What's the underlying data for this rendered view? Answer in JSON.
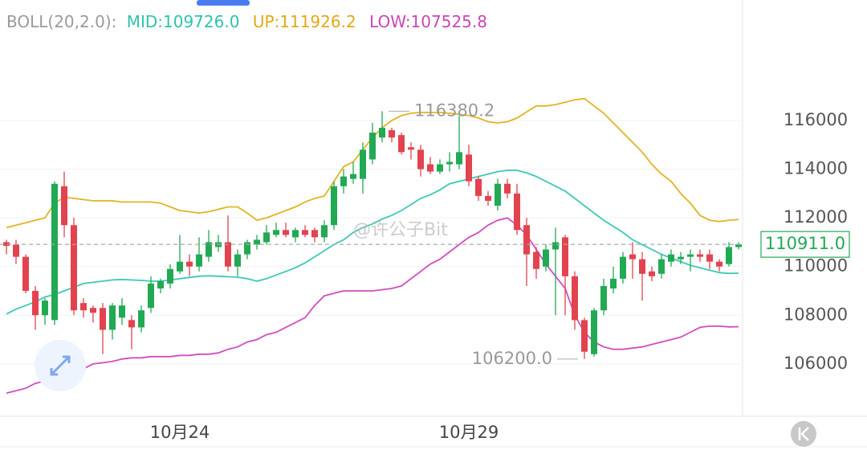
{
  "chart_data": {
    "type": "candlestick",
    "header": {
      "indicator": "BOLL(20,2.0):",
      "mid": "MID:109726.0",
      "up": "UP:111926.2",
      "low": "LOW:107525.8"
    },
    "watermark": "@许公子Bit",
    "categories": [
      null,
      null,
      null,
      null,
      null,
      null,
      null,
      null,
      null,
      null,
      null,
      null,
      null,
      null,
      null,
      null,
      null,
      null,
      "10月24",
      null,
      null,
      null,
      null,
      null,
      null,
      null,
      null,
      null,
      null,
      null,
      null,
      null,
      null,
      null,
      null,
      null,
      null,
      null,
      null,
      null,
      null,
      null,
      null,
      null,
      null,
      null,
      null,
      null,
      "10月29",
      null,
      null,
      null,
      null,
      null,
      null,
      null,
      null,
      null,
      null,
      null,
      null,
      null,
      null,
      null,
      null,
      null,
      null,
      null,
      null,
      null,
      null,
      null,
      null,
      null,
      null,
      null,
      null
    ],
    "open": [
      111000,
      110900,
      110400,
      109000,
      108000,
      107800,
      113300,
      111700,
      108500,
      108300,
      108300,
      107400,
      107900,
      107800,
      107500,
      108300,
      109100,
      109300,
      109800,
      110200,
      110000,
      110400,
      110800,
      111000,
      110000,
      110500,
      110900,
      111000,
      111300,
      111500,
      111200,
      111500,
      111500,
      111200,
      111700,
      113300,
      113600,
      113600,
      114400,
      115300,
      115600,
      115400,
      114900,
      114800,
      114200,
      113900,
      114200,
      114200,
      114600,
      113600,
      112900,
      112500,
      113400,
      113000,
      111700,
      110600,
      110000,
      110700,
      111200,
      109600,
      107800,
      106400,
      108200,
      109100,
      109500,
      110500,
      110300,
      109800,
      109700,
      110200,
      110300,
      110400,
      110500,
      110500,
      110200,
      110100,
      110800
    ],
    "high": [
      111100,
      111100,
      110500,
      109200,
      108700,
      113500,
      113900,
      112000,
      108700,
      108400,
      108500,
      108500,
      108700,
      108000,
      108400,
      109600,
      109500,
      110100,
      111300,
      110500,
      111200,
      111500,
      111300,
      112100,
      110700,
      111100,
      111300,
      111700,
      111800,
      111800,
      111600,
      111700,
      111600,
      111900,
      113500,
      114000,
      114300,
      115100,
      115900,
      116380.2,
      115700,
      115500,
      115100,
      115000,
      114500,
      114400,
      114700,
      116200,
      115000,
      113700,
      113100,
      113600,
      113600,
      113400,
      112000,
      110800,
      110900,
      111600,
      111300,
      109800,
      107900,
      108300,
      109500,
      110000,
      110600,
      111000,
      110600,
      110000,
      110500,
      110700,
      110600,
      110700,
      110700,
      110700,
      110300,
      111000,
      111000
    ],
    "low": [
      110500,
      110100,
      108900,
      107400,
      107600,
      107600,
      111200,
      108000,
      107900,
      107700,
      106400,
      107000,
      107600,
      106600,
      107300,
      108100,
      108900,
      109100,
      109700,
      109600,
      109800,
      110200,
      110600,
      109800,
      109600,
      110300,
      110700,
      110900,
      111200,
      111200,
      111000,
      111200,
      111000,
      111000,
      111500,
      113000,
      113400,
      113000,
      114200,
      115100,
      115100,
      114600,
      114400,
      113700,
      113800,
      113800,
      113900,
      114000,
      113300,
      112700,
      112500,
      112300,
      112800,
      111300,
      109200,
      109500,
      109800,
      108000,
      108000,
      107400,
      106200,
      106300,
      108000,
      108900,
      109300,
      109500,
      108600,
      109400,
      109500,
      110000,
      110100,
      109800,
      110200,
      109900,
      109800,
      110000,
      110700
    ],
    "close": [
      110850,
      110400,
      109000,
      108000,
      108600,
      113400,
      111700,
      108200,
      108200,
      108100,
      107400,
      108400,
      108400,
      107500,
      108200,
      109300,
      109400,
      109900,
      110200,
      110000,
      110500,
      111000,
      111000,
      110000,
      110500,
      111000,
      111100,
      111400,
      111500,
      111300,
      111500,
      111300,
      111200,
      111700,
      113300,
      113700,
      113800,
      114800,
      115500,
      115700,
      115300,
      114700,
      114800,
      114000,
      113900,
      114200,
      114300,
      114700,
      113500,
      112900,
      112700,
      113400,
      113000,
      111500,
      110500,
      109900,
      110700,
      111000,
      109600,
      107800,
      106500,
      108200,
      109200,
      109500,
      110400,
      110300,
      109700,
      109600,
      110300,
      110500,
      110400,
      110500,
      110400,
      110200,
      110000,
      110800,
      110911
    ],
    "up_color": "#22a954",
    "down_color": "#e2434f",
    "bands": [
      {
        "color": "#3cc9b7",
        "values": [
          108050,
          108250,
          108400,
          108550,
          108750,
          108850,
          109000,
          109150,
          109300,
          109350,
          109400,
          109450,
          109470,
          109450,
          109430,
          109400,
          109400,
          109450,
          109500,
          109550,
          109600,
          109620,
          109600,
          109580,
          109560,
          109500,
          109400,
          109500,
          109650,
          109800,
          109950,
          110150,
          110400,
          110650,
          110900,
          111100,
          111400,
          111600,
          111750,
          111950,
          112100,
          112300,
          112550,
          112800,
          112950,
          113150,
          113400,
          113500,
          113600,
          113700,
          113800,
          113900,
          113950,
          113950,
          113850,
          113700,
          113500,
          113300,
          113100,
          112800,
          112500,
          112200,
          111900,
          111650,
          111400,
          111100,
          110900,
          110700,
          110500,
          110350,
          110200,
          110050,
          109950,
          109850,
          109750,
          109720,
          109726
        ]
      },
      {
        "color": "#e4b322",
        "values": [
          111600,
          111700,
          111800,
          111900,
          112000,
          112600,
          112850,
          112800,
          112750,
          112700,
          112700,
          112700,
          112650,
          112650,
          112650,
          112650,
          112600,
          112450,
          112300,
          112250,
          112200,
          112250,
          112350,
          112450,
          112450,
          112200,
          111900,
          112000,
          112150,
          112300,
          112450,
          112650,
          112800,
          112900,
          113500,
          114100,
          114300,
          114800,
          115300,
          115700,
          116000,
          116200,
          116300,
          116330,
          116330,
          116330,
          116300,
          116250,
          116200,
          116100,
          115950,
          115900,
          115950,
          116100,
          116350,
          116600,
          116600,
          116650,
          116750,
          116850,
          116900,
          116600,
          116300,
          115900,
          115500,
          115100,
          114700,
          114200,
          113800,
          113500,
          113000,
          112600,
          112100,
          111900,
          111850,
          111900,
          111930
        ]
      },
      {
        "color": "#d24dbf",
        "values": [
          104800,
          104900,
          105000,
          105200,
          105300,
          105500,
          105600,
          105700,
          105800,
          106000,
          106050,
          106100,
          106200,
          106250,
          106250,
          106300,
          106300,
          106300,
          106350,
          106350,
          106400,
          106400,
          106450,
          106600,
          106700,
          106900,
          107000,
          107200,
          107300,
          107500,
          107700,
          107900,
          108400,
          108800,
          108900,
          109000,
          109000,
          109000,
          109000,
          109050,
          109100,
          109200,
          109500,
          109800,
          110100,
          110300,
          110600,
          110900,
          111200,
          111400,
          111700,
          111900,
          112000,
          111700,
          111300,
          110700,
          110100,
          109600,
          109100,
          108000,
          107300,
          106900,
          106700,
          106600,
          106600,
          106650,
          106700,
          106800,
          106900,
          107000,
          107100,
          107300,
          107500,
          107550,
          107550,
          107520,
          107526
        ]
      }
    ],
    "max_label": 116380.2,
    "min_label": {
      "value": 106200,
      "label": "106200.0"
    },
    "last_price": {
      "value": 110911,
      "label": "110911.0"
    },
    "ylim": [
      103850,
      120950
    ],
    "yticks": [
      106000,
      108000,
      110000,
      112000,
      114000,
      116000
    ],
    "grid": true
  }
}
